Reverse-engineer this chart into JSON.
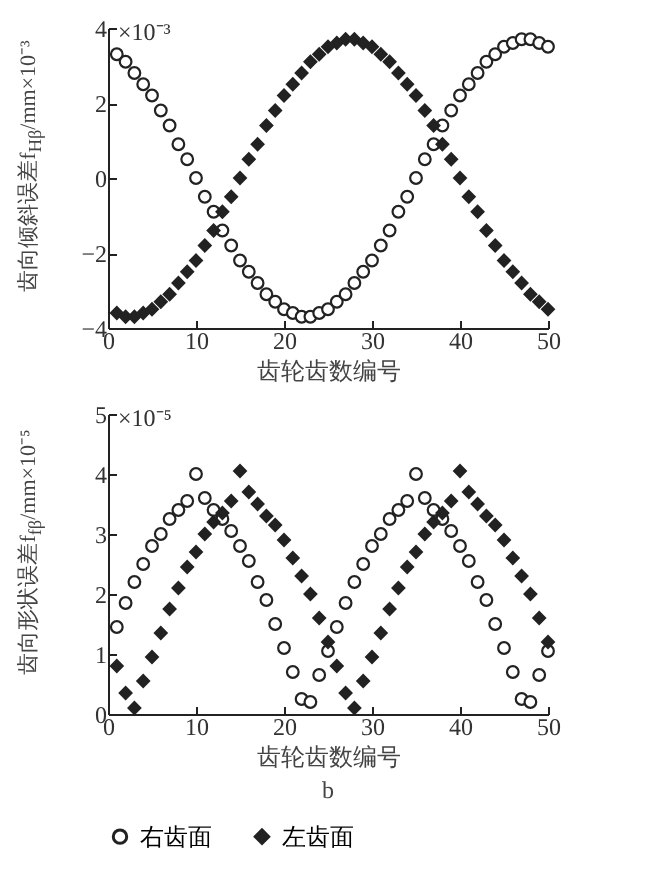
{
  "chart_data": [
    {
      "type": "scatter",
      "xlabel": "齿轮齿数编号",
      "ylabel": "齿向倾斜误差f$_{Hβ}$/mm×10⁻³",
      "annotations": [
        "×10⁻³"
      ],
      "x": [
        1,
        2,
        3,
        4,
        5,
        6,
        7,
        8,
        9,
        10,
        11,
        12,
        13,
        14,
        15,
        16,
        17,
        18,
        19,
        20,
        21,
        22,
        23,
        24,
        25,
        26,
        27,
        28,
        29,
        30,
        31,
        32,
        33,
        34,
        35,
        36,
        37,
        38,
        39,
        40,
        41,
        42,
        43,
        44,
        45,
        46,
        47,
        48,
        49,
        50
      ],
      "series": [
        {
          "color": "#222222",
          "marker": "circle",
          "values": [
            3.3,
            3.1,
            2.8,
            2.5,
            2.2,
            1.8,
            1.4,
            0.9,
            0.5,
            0,
            -0.5,
            -0.9,
            -1.4,
            -1.8,
            -2.2,
            -2.5,
            -2.8,
            -3.1,
            -3.3,
            -3.5,
            -3.6,
            -3.7,
            -3.7,
            -3.6,
            -3.5,
            -3.3,
            -3.1,
            -2.8,
            -2.5,
            -2.2,
            -1.8,
            -1.4,
            -0.9,
            -0.5,
            0,
            0.5,
            0.9,
            1.4,
            1.8,
            2.2,
            2.5,
            2.8,
            3.1,
            3.3,
            3.5,
            3.6,
            3.7,
            3.7,
            3.6,
            3.5
          ]
        },
        {
          "color": "#222222",
          "marker": "diamond",
          "values": [
            -3.6,
            -3.7,
            -3.7,
            -3.6,
            -3.5,
            -3.3,
            -3.1,
            -2.8,
            -2.5,
            -2.2,
            -1.8,
            -1.4,
            -0.9,
            -0.5,
            0,
            0.5,
            0.9,
            1.4,
            1.8,
            2.2,
            2.5,
            2.8,
            3.1,
            3.3,
            3.5,
            3.6,
            3.7,
            3.7,
            3.6,
            3.5,
            3.3,
            3.1,
            2.8,
            2.5,
            2.2,
            1.8,
            1.4,
            0.9,
            0.5,
            0,
            -0.5,
            -0.9,
            -1.4,
            -1.8,
            -2.2,
            -2.5,
            -2.8,
            -3.1,
            -3.3,
            -3.5
          ]
        }
      ],
      "xlim": [
        0,
        50
      ],
      "xticks": [
        0,
        10,
        20,
        30,
        40,
        50
      ],
      "ylim": [
        -4,
        4
      ],
      "yticks": [
        -4,
        -2,
        0,
        2,
        4
      ],
      "grid": false,
      "legend": false
    },
    {
      "type": "scatter",
      "xlabel": "齿轮齿数编号",
      "ylabel": "齿向形状误差f$_{fβ}$/mm×10⁻⁵",
      "annotations": [
        "×10⁻⁵",
        "b"
      ],
      "x": [
        1,
        2,
        3,
        4,
        5,
        6,
        7,
        8,
        9,
        10,
        11,
        12,
        13,
        14,
        15,
        16,
        17,
        18,
        19,
        20,
        21,
        22,
        23,
        24,
        25,
        26,
        27,
        28,
        29,
        30,
        31,
        32,
        33,
        34,
        35,
        36,
        37,
        38,
        39,
        40,
        41,
        42,
        43,
        44,
        45,
        46,
        47,
        48,
        49,
        50
      ],
      "series": [
        {
          "name": "右齿面",
          "color": "#222222",
          "marker": "circle",
          "values": [
            1.45,
            1.85,
            2.2,
            2.5,
            2.8,
            3.0,
            3.25,
            3.4,
            3.55,
            4.0,
            3.6,
            3.4,
            3.25,
            3.05,
            2.8,
            2.55,
            2.2,
            1.9,
            1.5,
            1.1,
            0.7,
            0.25,
            0.2,
            0.65,
            1.05,
            1.45,
            1.85,
            2.2,
            2.5,
            2.8,
            3.0,
            3.25,
            3.4,
            3.55,
            4.0,
            3.6,
            3.4,
            3.25,
            3.05,
            2.8,
            2.55,
            2.2,
            1.9,
            1.5,
            1.1,
            0.7,
            0.25,
            0.2,
            0.65,
            1.05
          ]
        },
        {
          "name": "左齿面",
          "color": "#222222",
          "marker": "diamond",
          "values": [
            0.8,
            0.35,
            0.1,
            0.55,
            0.95,
            1.35,
            1.75,
            2.1,
            2.45,
            2.7,
            3.0,
            3.2,
            3.35,
            3.55,
            4.05,
            3.7,
            3.5,
            3.3,
            3.15,
            2.9,
            2.6,
            2.3,
            2.0,
            1.6,
            1.2,
            0.8,
            0.35,
            0.1,
            0.55,
            0.95,
            1.35,
            1.75,
            2.1,
            2.45,
            2.7,
            3.0,
            3.2,
            3.35,
            3.55,
            4.05,
            3.7,
            3.5,
            3.3,
            3.15,
            2.9,
            2.6,
            2.3,
            2.0,
            1.6,
            1.2
          ]
        }
      ],
      "xlim": [
        0,
        50
      ],
      "xticks": [
        0,
        10,
        20,
        30,
        40,
        50
      ],
      "ylim": [
        0,
        5
      ],
      "yticks": [
        0,
        1,
        2,
        3,
        4,
        5
      ],
      "grid": false,
      "legend": "bottom"
    }
  ]
}
